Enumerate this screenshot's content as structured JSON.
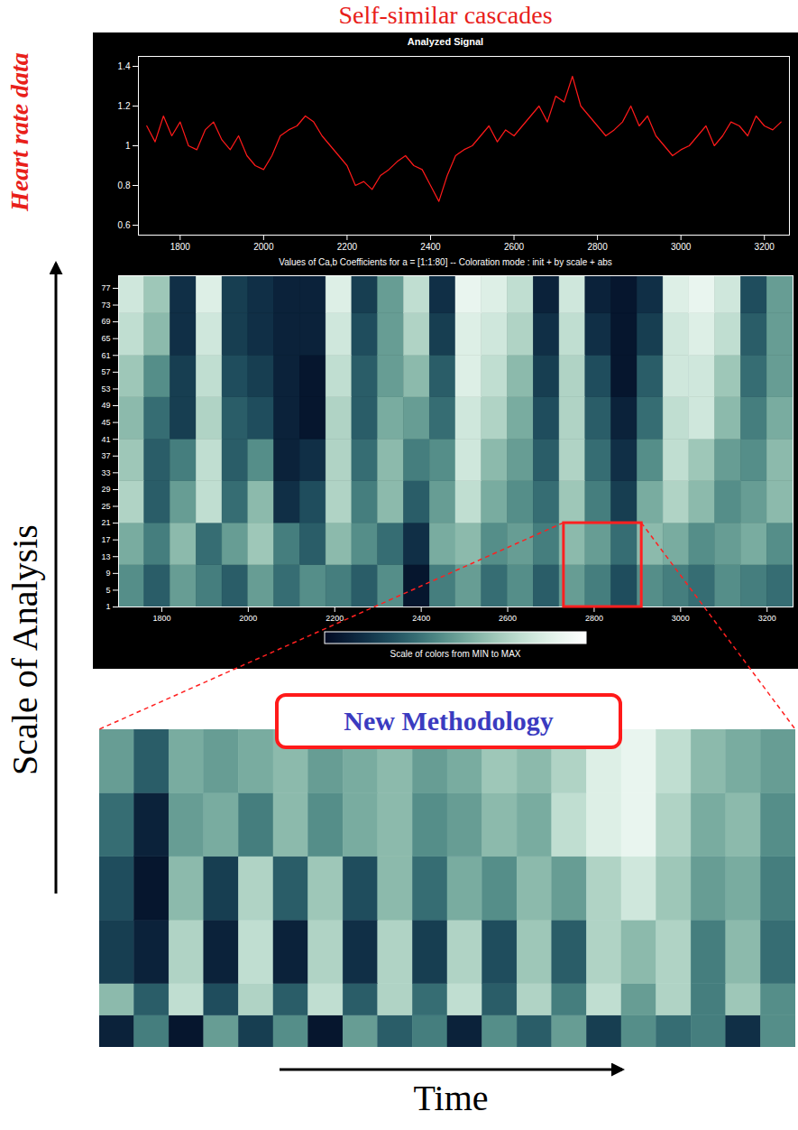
{
  "title": "Self-similar cascades",
  "side_labels": {
    "data": "Heart rate data",
    "y": "Scale of Analysis",
    "x": "Time"
  },
  "chart_data": [
    {
      "type": "line",
      "title": "Analyzed Signal",
      "color": "#ff1a1a",
      "x": [
        1720,
        1740,
        1760,
        1780,
        1800,
        1820,
        1840,
        1860,
        1880,
        1900,
        1920,
        1940,
        1960,
        1980,
        2000,
        2020,
        2040,
        2060,
        2080,
        2100,
        2120,
        2140,
        2160,
        2180,
        2200,
        2220,
        2240,
        2260,
        2280,
        2300,
        2320,
        2340,
        2360,
        2380,
        2400,
        2420,
        2440,
        2460,
        2480,
        2500,
        2520,
        2540,
        2560,
        2580,
        2600,
        2620,
        2640,
        2660,
        2680,
        2700,
        2720,
        2740,
        2760,
        2780,
        2800,
        2820,
        2840,
        2860,
        2880,
        2900,
        2920,
        2940,
        2960,
        2980,
        3000,
        3020,
        3040,
        3060,
        3080,
        3100,
        3120,
        3140,
        3160,
        3180,
        3200,
        3220,
        3240
      ],
      "values": [
        1.1,
        1.02,
        1.15,
        1.05,
        1.12,
        1.0,
        0.98,
        1.08,
        1.12,
        1.03,
        0.98,
        1.05,
        0.95,
        0.9,
        0.88,
        0.95,
        1.05,
        1.08,
        1.1,
        1.15,
        1.12,
        1.05,
        1.0,
        0.95,
        0.9,
        0.8,
        0.82,
        0.78,
        0.85,
        0.88,
        0.92,
        0.95,
        0.9,
        0.88,
        0.8,
        0.72,
        0.85,
        0.95,
        0.98,
        1.0,
        1.05,
        1.1,
        1.02,
        1.08,
        1.05,
        1.1,
        1.15,
        1.2,
        1.12,
        1.25,
        1.22,
        1.35,
        1.2,
        1.15,
        1.1,
        1.05,
        1.08,
        1.12,
        1.2,
        1.1,
        1.15,
        1.05,
        1.0,
        0.95,
        0.98,
        1.0,
        1.05,
        1.1,
        1.0,
        1.05,
        1.12,
        1.1,
        1.05,
        1.15,
        1.1,
        1.08,
        1.12
      ],
      "xlim": [
        1700,
        3260
      ],
      "ylim": [
        0.55,
        1.45
      ],
      "xticks": [
        1800,
        2000,
        2200,
        2400,
        2600,
        2800,
        3000,
        3200
      ],
      "yticks": [
        0.6,
        0.8,
        1,
        1.2,
        1.4
      ]
    },
    {
      "type": "heatmap",
      "title": "Values of Ca,b Coefficients for a = [1:1:80] -- Coloration mode : init + by scale + abs",
      "x_edges": [
        1700,
        1760,
        1820,
        1880,
        1940,
        2000,
        2060,
        2120,
        2180,
        2240,
        2300,
        2360,
        2420,
        2480,
        2540,
        2600,
        2660,
        2720,
        2780,
        2840,
        2900,
        2960,
        3020,
        3080,
        3140,
        3200,
        3260
      ],
      "y_edges": [
        1,
        11,
        21,
        31,
        41,
        51,
        61,
        71,
        80
      ],
      "cells": [
        [
          0.45,
          0.3,
          0.5,
          0.4,
          0.3,
          0.5,
          0.35,
          0.45,
          0.4,
          0.3,
          0.45,
          0.05,
          0.4,
          0.5,
          0.35,
          0.45,
          0.3,
          0.5,
          0.4,
          0.25,
          0.45,
          0.4,
          0.35,
          0.45,
          0.4,
          0.35
        ],
        [
          0.55,
          0.4,
          0.6,
          0.35,
          0.5,
          0.65,
          0.4,
          0.3,
          0.6,
          0.45,
          0.35,
          0.15,
          0.55,
          0.6,
          0.45,
          0.5,
          0.4,
          0.6,
          0.5,
          0.35,
          0.6,
          0.55,
          0.45,
          0.5,
          0.55,
          0.45
        ],
        [
          0.7,
          0.3,
          0.5,
          0.75,
          0.35,
          0.6,
          0.15,
          0.25,
          0.7,
          0.4,
          0.6,
          0.3,
          0.5,
          0.75,
          0.55,
          0.45,
          0.35,
          0.65,
          0.4,
          0.2,
          0.55,
          0.7,
          0.6,
          0.45,
          0.5,
          0.6
        ],
        [
          0.65,
          0.3,
          0.4,
          0.75,
          0.3,
          0.45,
          0.1,
          0.15,
          0.7,
          0.35,
          0.6,
          0.4,
          0.45,
          0.8,
          0.6,
          0.5,
          0.3,
          0.7,
          0.35,
          0.15,
          0.45,
          0.75,
          0.65,
          0.5,
          0.45,
          0.6
        ],
        [
          0.6,
          0.35,
          0.2,
          0.7,
          0.3,
          0.25,
          0.1,
          0.05,
          0.7,
          0.3,
          0.55,
          0.5,
          0.35,
          0.8,
          0.7,
          0.55,
          0.25,
          0.7,
          0.3,
          0.1,
          0.35,
          0.75,
          0.8,
          0.6,
          0.4,
          0.55
        ],
        [
          0.65,
          0.45,
          0.2,
          0.75,
          0.25,
          0.2,
          0.1,
          0.05,
          0.75,
          0.3,
          0.5,
          0.6,
          0.3,
          0.85,
          0.75,
          0.6,
          0.2,
          0.7,
          0.25,
          0.05,
          0.3,
          0.8,
          0.8,
          0.65,
          0.35,
          0.5
        ],
        [
          0.75,
          0.6,
          0.15,
          0.8,
          0.2,
          0.15,
          0.1,
          0.1,
          0.8,
          0.25,
          0.5,
          0.7,
          0.2,
          0.85,
          0.8,
          0.7,
          0.15,
          0.75,
          0.15,
          0.05,
          0.2,
          0.8,
          0.85,
          0.75,
          0.3,
          0.5
        ],
        [
          0.8,
          0.65,
          0.15,
          0.85,
          0.2,
          0.15,
          0.1,
          0.1,
          0.85,
          0.2,
          0.5,
          0.75,
          0.15,
          0.9,
          0.85,
          0.75,
          0.1,
          0.8,
          0.1,
          0.05,
          0.15,
          0.85,
          0.9,
          0.8,
          0.25,
          0.5
        ]
      ],
      "xlim": [
        1700,
        3260
      ],
      "ylim": [
        1,
        80
      ],
      "xticks": [
        1800,
        2000,
        2200,
        2400,
        2600,
        2800,
        3000,
        3200
      ],
      "yticks": [
        1,
        5,
        9,
        13,
        17,
        21,
        25,
        29,
        33,
        37,
        41,
        45,
        49,
        53,
        57,
        61,
        65,
        69,
        73,
        77
      ],
      "colorbar": {
        "label": "Scale of colors from MIN to MAX",
        "range": [
          0,
          1
        ]
      }
    },
    {
      "type": "heatmap",
      "annotation": "New Methodology",
      "tick_labels": false,
      "x_edges": [
        2730,
        2739,
        2748,
        2757,
        2766,
        2775,
        2784,
        2793,
        2802,
        2811,
        2820,
        2829,
        2838,
        2847,
        2856,
        2865,
        2874,
        2883,
        2892,
        2901,
        2910
      ],
      "y_edges": [
        1,
        3,
        5,
        9,
        13,
        17,
        21
      ],
      "cells": [
        [
          0.1,
          0.4,
          0.05,
          0.5,
          0.2,
          0.45,
          0.05,
          0.5,
          0.3,
          0.4,
          0.1,
          0.45,
          0.3,
          0.5,
          0.2,
          0.45,
          0.35,
          0.4,
          0.15,
          0.45
        ],
        [
          0.6,
          0.3,
          0.75,
          0.25,
          0.7,
          0.3,
          0.75,
          0.3,
          0.7,
          0.35,
          0.75,
          0.3,
          0.7,
          0.4,
          0.75,
          0.5,
          0.7,
          0.4,
          0.65,
          0.45
        ],
        [
          0.2,
          0.1,
          0.7,
          0.1,
          0.75,
          0.1,
          0.7,
          0.15,
          0.7,
          0.2,
          0.7,
          0.25,
          0.65,
          0.3,
          0.7,
          0.6,
          0.7,
          0.4,
          0.6,
          0.35
        ],
        [
          0.25,
          0.05,
          0.6,
          0.2,
          0.7,
          0.3,
          0.65,
          0.25,
          0.6,
          0.35,
          0.55,
          0.45,
          0.6,
          0.5,
          0.7,
          0.8,
          0.65,
          0.5,
          0.55,
          0.4
        ],
        [
          0.35,
          0.1,
          0.5,
          0.55,
          0.4,
          0.6,
          0.45,
          0.55,
          0.6,
          0.45,
          0.5,
          0.6,
          0.55,
          0.75,
          0.85,
          0.9,
          0.7,
          0.55,
          0.6,
          0.45
        ],
        [
          0.5,
          0.3,
          0.55,
          0.5,
          0.55,
          0.6,
          0.5,
          0.55,
          0.6,
          0.5,
          0.55,
          0.65,
          0.6,
          0.7,
          0.85,
          0.9,
          0.75,
          0.6,
          0.55,
          0.5
        ]
      ],
      "xlim": [
        2730,
        2910
      ],
      "ylim": [
        1,
        21
      ]
    }
  ]
}
